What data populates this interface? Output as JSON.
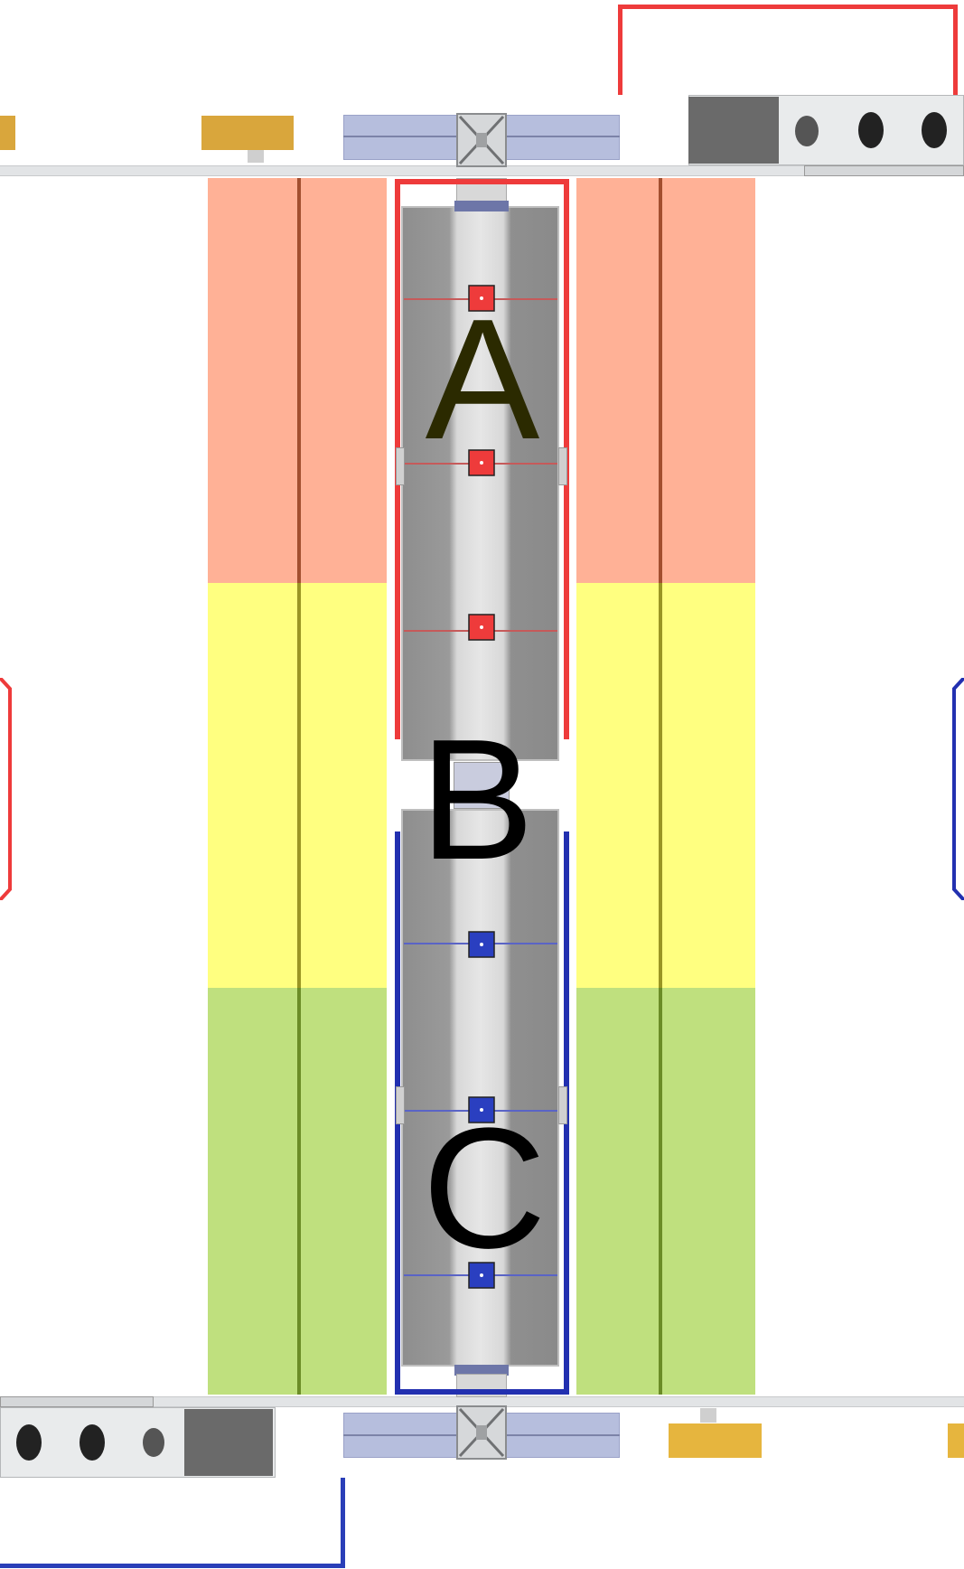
{
  "labels": {
    "a": "A",
    "b": "B",
    "c": "C"
  },
  "colors": {
    "zone_top": "#ffb196",
    "zone_mid": "#ffff80",
    "zone_bottom": "#bfe07e",
    "red_outline": "#ee3b3b",
    "blue_outline": "#2230b0",
    "gold_block": "#e0ad3a",
    "rail": "#e2e4e6",
    "track": "#8a8a8a",
    "label_dark": "#2b2a00",
    "label_black": "#000000"
  },
  "icons": {
    "red_marker": "square-marker-icon",
    "blue_marker": "square-marker-icon",
    "truss": "truss-icon"
  }
}
